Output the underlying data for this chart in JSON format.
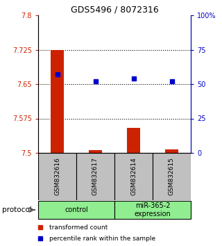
{
  "title": "GDS5496 / 8072316",
  "samples": [
    "GSM832616",
    "GSM832617",
    "GSM832614",
    "GSM832615"
  ],
  "red_values": [
    7.725,
    7.506,
    7.555,
    7.508
  ],
  "blue_values": [
    57,
    52,
    54,
    52
  ],
  "ylim_left": [
    7.5,
    7.8
  ],
  "ylim_right": [
    0,
    100
  ],
  "yticks_left": [
    7.5,
    7.575,
    7.65,
    7.725,
    7.8
  ],
  "yticks_left_labels": [
    "7.5",
    "7.575",
    "7.65",
    "7.725",
    "7.8"
  ],
  "yticks_right": [
    0,
    25,
    50,
    75,
    100
  ],
  "yticks_right_labels": [
    "0",
    "25",
    "50",
    "75",
    "100%"
  ],
  "dotted_yticks": [
    7.575,
    7.65,
    7.725
  ],
  "groups": [
    {
      "label": "control",
      "samples": [
        0,
        1
      ],
      "color": "#90EE90"
    },
    {
      "label": "miR-365-2\nexpression",
      "samples": [
        2,
        3
      ],
      "color": "#90EE90"
    }
  ],
  "protocol_label": "protocol",
  "bar_color": "#CC2200",
  "point_color": "#0000CC",
  "legend_red": "transformed count",
  "legend_blue": "percentile rank within the sample",
  "bar_width": 0.35,
  "x_positions": [
    0,
    1,
    2,
    3
  ],
  "baseline": 7.5,
  "sample_box_color": "#C0C0C0"
}
